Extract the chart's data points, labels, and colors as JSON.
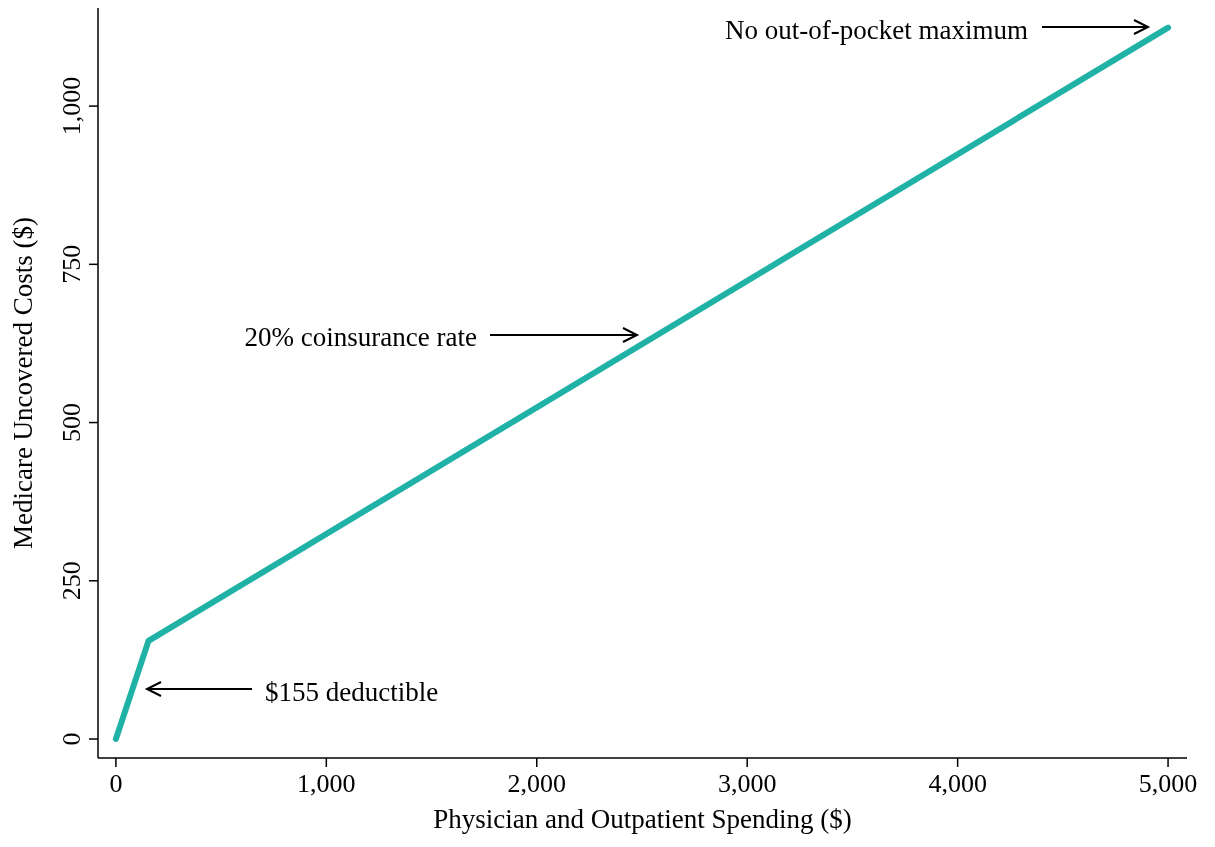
{
  "chart_data": {
    "type": "line",
    "xlabel": "Physician and Outpatient Spending ($)",
    "ylabel": "Medicare Uncovered Costs ($)",
    "x": [
      0,
      155,
      5000
    ],
    "series": [
      {
        "color": "#20b2a6",
        "values": [
          0,
          155,
          1124
        ]
      }
    ],
    "xlim": [
      -85,
      5090
    ],
    "ylim": [
      -30,
      1155
    ],
    "xticks": [
      {
        "value": 0,
        "label": "0"
      },
      {
        "value": 1000,
        "label": "1,000"
      },
      {
        "value": 2000,
        "label": "2,000"
      },
      {
        "value": 3000,
        "label": "3,000"
      },
      {
        "value": 4000,
        "label": "4,000"
      },
      {
        "value": 5000,
        "label": "5,000"
      }
    ],
    "yticks": [
      {
        "value": 0,
        "label": "0"
      },
      {
        "value": 250,
        "label": "250"
      },
      {
        "value": 500,
        "label": "500"
      },
      {
        "value": 750,
        "label": "750"
      },
      {
        "value": 1000,
        "label": "1,000"
      }
    ],
    "grid": false,
    "marker": "none",
    "line_style": "solid",
    "annotations": [
      "No out-of-pocket maximum",
      "20% coinsurance rate",
      "$155 deductible"
    ]
  }
}
